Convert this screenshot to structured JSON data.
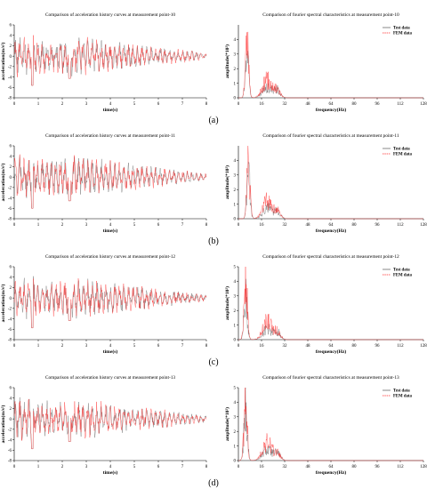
{
  "figure": {
    "panel_labels": [
      "(a)",
      "(b)",
      "(c)",
      "(d)"
    ],
    "legend": {
      "test": "Test data",
      "fem": "FEM data"
    },
    "colors": {
      "test": "#555555",
      "fem": "#ff2a2a"
    }
  },
  "chart_data": [
    {
      "type": "line",
      "title": "Comparison of acceleration history curves at measurement point-10",
      "xlabel": "time(s)",
      "ylabel": "acceleration(m/s²)",
      "xlim": [
        0,
        8
      ],
      "ylim": [
        -8,
        6
      ],
      "xticks": [
        0,
        1,
        2,
        3,
        4,
        5,
        6,
        7,
        8
      ],
      "yticks": [
        -8,
        -6,
        -4,
        -2,
        0,
        2,
        4,
        6
      ],
      "series": [
        {
          "name": "Test data",
          "amplitude_peak": 4.5
        },
        {
          "name": "FEM data",
          "amplitude_peak": 4.5
        }
      ]
    },
    {
      "type": "line",
      "title": "Comparison of fourier spectral characteristics at measurement point-10",
      "xlabel": "frequency(Hz)",
      "ylabel": "amplitude(*10²)",
      "xlim": [
        0,
        128
      ],
      "ylim": [
        0,
        5
      ],
      "xticks": [
        0,
        16,
        32,
        48,
        64,
        80,
        96,
        112,
        128
      ],
      "yticks": [
        0,
        1,
        2,
        3,
        4
      ],
      "series": [
        {
          "name": "Test data",
          "peak_hz": 6,
          "peak_value": 4.2
        },
        {
          "name": "FEM data",
          "peak_hz": 6,
          "peak_value": 4.5
        }
      ]
    },
    {
      "type": "line",
      "title": "Comparison of acceleration history curves at measurement point-11",
      "xlabel": "time(s)",
      "ylabel": "acceleration(m/s²)",
      "xlim": [
        0,
        8
      ],
      "ylim": [
        -8,
        6
      ],
      "xticks": [
        0,
        1,
        2,
        3,
        4,
        5,
        6,
        7,
        8
      ],
      "yticks": [
        -8,
        -6,
        -4,
        -2,
        0,
        2,
        4,
        6
      ],
      "series": [
        {
          "name": "Test data",
          "amplitude_peak": 4.8
        },
        {
          "name": "FEM data",
          "amplitude_peak": 4.8
        }
      ]
    },
    {
      "type": "line",
      "title": "Comparison of fourier spectral characteristics at measurement point-11",
      "xlabel": "frequency(Hz)",
      "ylabel": "amplitude(*10²)",
      "xlim": [
        0,
        128
      ],
      "ylim": [
        0,
        5
      ],
      "xticks": [
        0,
        16,
        32,
        48,
        64,
        80,
        96,
        112,
        128
      ],
      "yticks": [
        0,
        1,
        2,
        3,
        4
      ],
      "series": [
        {
          "name": "Test data",
          "peak_hz": 7,
          "peak_value": 3.5
        },
        {
          "name": "FEM data",
          "peak_hz": 7,
          "peak_value": 4.6
        }
      ]
    },
    {
      "type": "line",
      "title": "Comparison of acceleration history curves at measurement point-12",
      "xlabel": "time(s)",
      "ylabel": "acceleration(m/s²)",
      "xlim": [
        0,
        8
      ],
      "ylim": [
        -8,
        6
      ],
      "xticks": [
        0,
        1,
        2,
        3,
        4,
        5,
        6,
        7,
        8
      ],
      "yticks": [
        -8,
        -6,
        -4,
        -2,
        0,
        2,
        4,
        6
      ],
      "series": [
        {
          "name": "Test data",
          "amplitude_peak": 4.6
        },
        {
          "name": "FEM data",
          "amplitude_peak": 4.6
        }
      ]
    },
    {
      "type": "line",
      "title": "Comparison of fourier spectral characteristics at measurement point-12",
      "xlabel": "frequency(Hz)",
      "ylabel": "amplitude(*10²)",
      "xlim": [
        0,
        128
      ],
      "ylim": [
        0,
        5
      ],
      "xticks": [
        0,
        16,
        32,
        48,
        64,
        80,
        96,
        112,
        128
      ],
      "yticks": [
        0,
        1,
        2,
        3,
        4,
        5
      ],
      "series": [
        {
          "name": "Test data",
          "peak_hz": 5,
          "peak_value": 3.6
        },
        {
          "name": "FEM data",
          "peak_hz": 5,
          "peak_value": 5.0
        }
      ]
    },
    {
      "type": "line",
      "title": "Comparison of acceleration history curves at measurement point-13",
      "xlabel": "time(s)",
      "ylabel": "acceleration(m/s²)",
      "xlim": [
        0,
        8
      ],
      "ylim": [
        -8,
        6
      ],
      "xticks": [
        0,
        1,
        2,
        3,
        4,
        5,
        6,
        7,
        8
      ],
      "yticks": [
        -8,
        -6,
        -4,
        -2,
        0,
        2,
        4,
        6
      ],
      "series": [
        {
          "name": "Test data",
          "amplitude_peak": 4.6
        },
        {
          "name": "FEM data",
          "amplitude_peak": 4.6
        }
      ]
    },
    {
      "type": "line",
      "title": "Comparison of fourier spectral characteristics at measurement point-13",
      "xlabel": "frequency(Hz)",
      "ylabel": "amplitude(*10²)",
      "xlim": [
        0,
        128
      ],
      "ylim": [
        0,
        5
      ],
      "xticks": [
        0,
        16,
        32,
        48,
        64,
        80,
        96,
        112,
        128
      ],
      "yticks": [
        0,
        1,
        2,
        3,
        4,
        5
      ],
      "series": [
        {
          "name": "Test data",
          "peak_hz": 5,
          "peak_value": 4.4
        },
        {
          "name": "FEM data",
          "peak_hz": 5,
          "peak_value": 5.3
        }
      ]
    }
  ]
}
